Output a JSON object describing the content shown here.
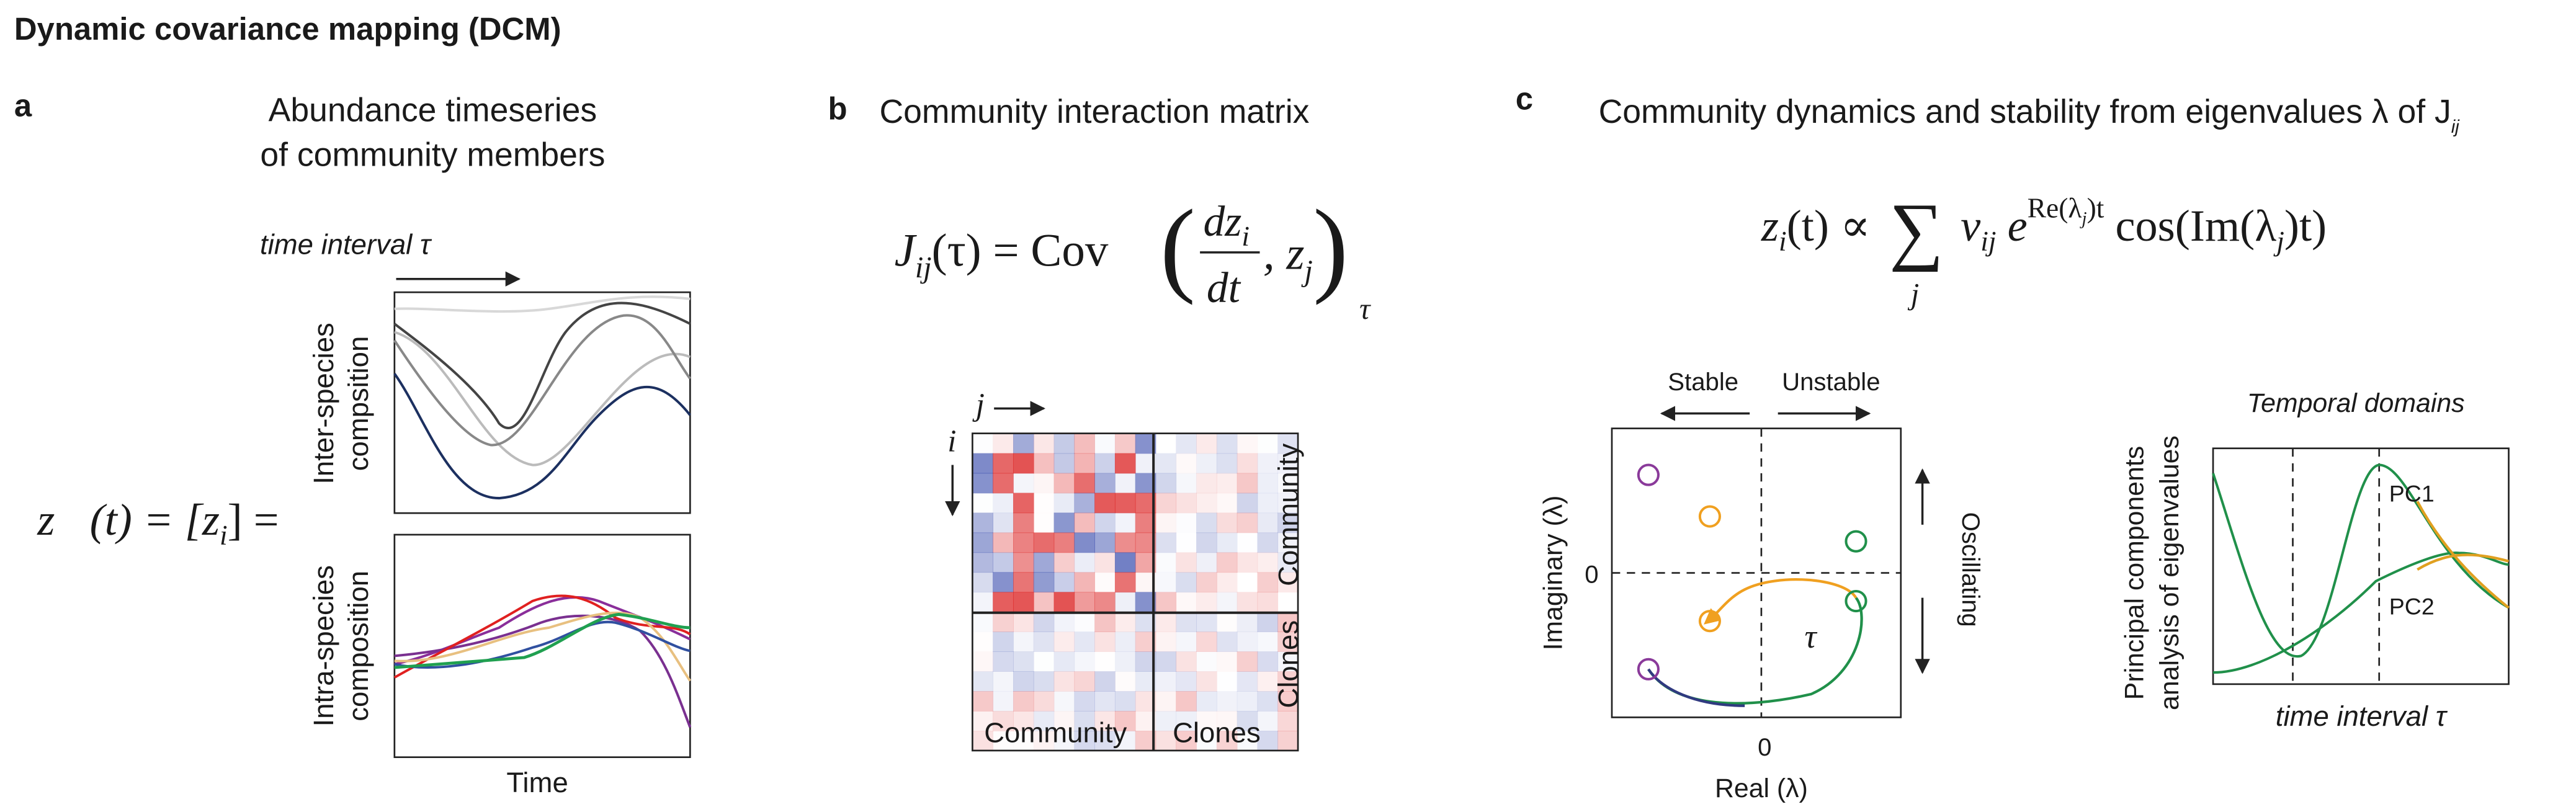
{
  "header": {
    "title": "Dynamic covariance mapping (DCM)"
  },
  "panel_a": {
    "label": "a",
    "title": [
      "Abundance timeseries",
      "of community members"
    ],
    "time_interval": "time interval τ",
    "top_ylabel": [
      "Inter-species",
      "compsition"
    ],
    "bottom_ylabel": [
      "Intra-species",
      "composition"
    ],
    "xlabel": "Time",
    "equation": [
      "z⃗(t) = [z",
      "i",
      "] ="
    ]
  },
  "panel_b": {
    "label": "b",
    "title": "Community interaction matrix",
    "equation": [
      "J",
      "ij",
      "(τ) = Cov",
      "dz",
      "i",
      "dt",
      ", z",
      "j",
      "τ"
    ],
    "col_index": "j",
    "row_index": "i",
    "bottom_labels": [
      "Community",
      "Clones"
    ],
    "side_labels": [
      "Community",
      "Clones"
    ]
  },
  "panel_c": {
    "label": "c",
    "title": [
      "Community dynamics and stability from eigenvalues λ of J",
      "ij"
    ],
    "equation": [
      "z",
      "i",
      "(t) ∝ ",
      "∑",
      "j",
      " v",
      "ij",
      " e",
      "Re(λ",
      "j",
      ")t",
      " cos(Im(λ",
      "j",
      ")t)"
    ],
    "stable": "Stable",
    "unstable": "Unstable",
    "ylabel": "Imaginary (λ)",
    "xlabel": "Real (λ)",
    "y_zero": "0",
    "x_zero": "0",
    "oscillating": "Oscillating",
    "tau": "τ",
    "pca_title": "Temporal domains",
    "pca_ylabel": [
      "Principal components",
      "analysis of eigenvalues"
    ],
    "pca_xlabel": "time interval τ",
    "pc1": "PC1",
    "pc2": "PC2"
  }
}
